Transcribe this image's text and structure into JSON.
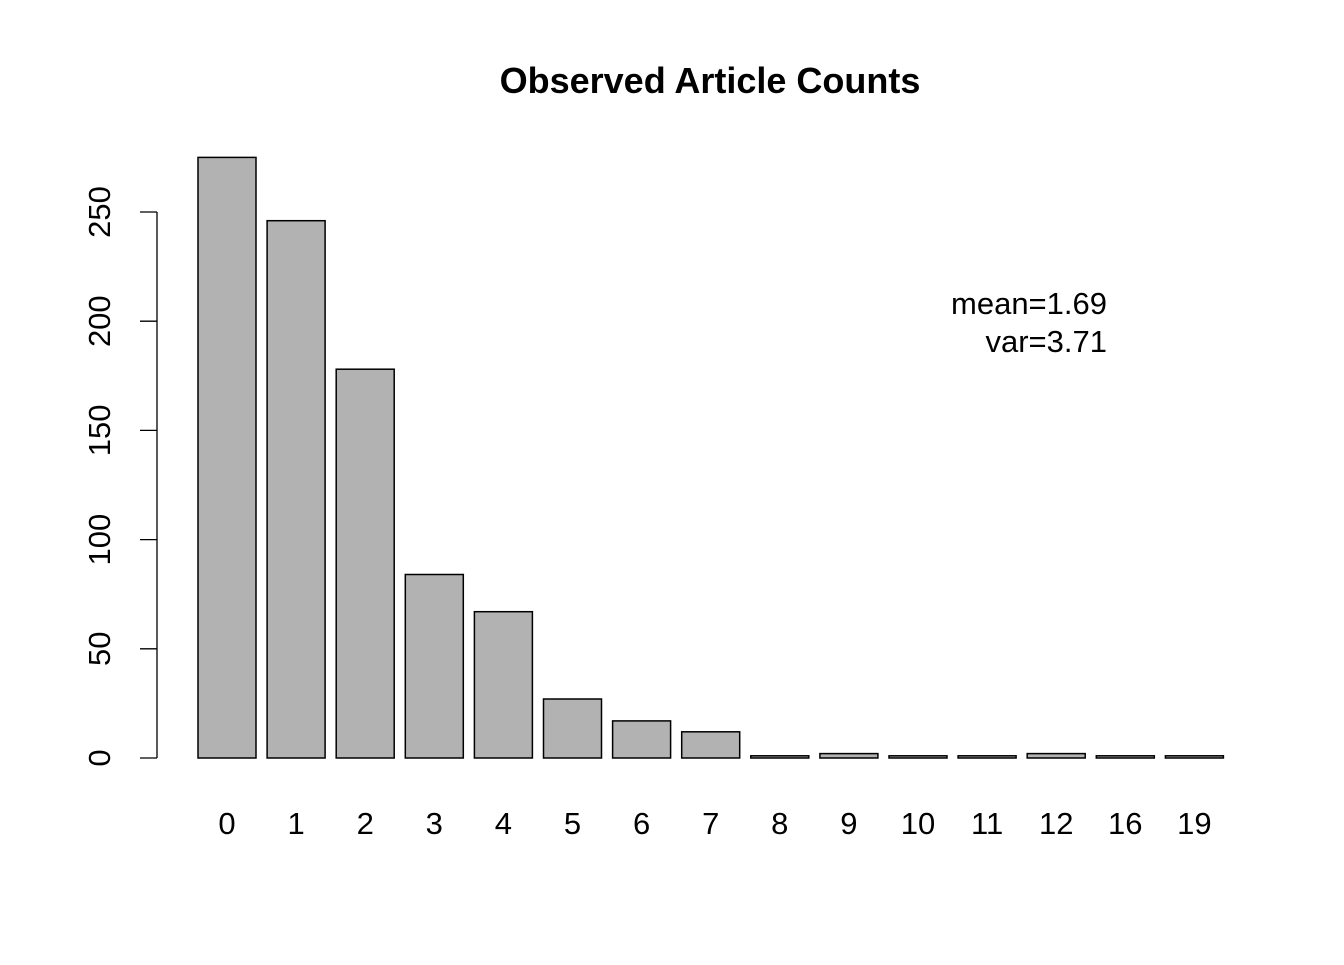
{
  "chart_data": {
    "type": "bar",
    "title": "Observed Article Counts",
    "xlabel": "",
    "ylabel": "",
    "categories": [
      "0",
      "1",
      "2",
      "3",
      "4",
      "5",
      "6",
      "7",
      "8",
      "9",
      "10",
      "11",
      "12",
      "16",
      "19"
    ],
    "values": [
      275,
      246,
      178,
      84,
      67,
      27,
      17,
      12,
      1,
      2,
      1,
      1,
      2,
      1,
      1
    ],
    "ylim": [
      0,
      250
    ],
    "yticks": [
      0,
      50,
      100,
      150,
      200,
      250
    ],
    "grid": false,
    "bar_fill": "#b2b2b2",
    "bar_stroke": "#000000",
    "annotations": [
      "mean=1.69",
      "var=3.71"
    ]
  }
}
